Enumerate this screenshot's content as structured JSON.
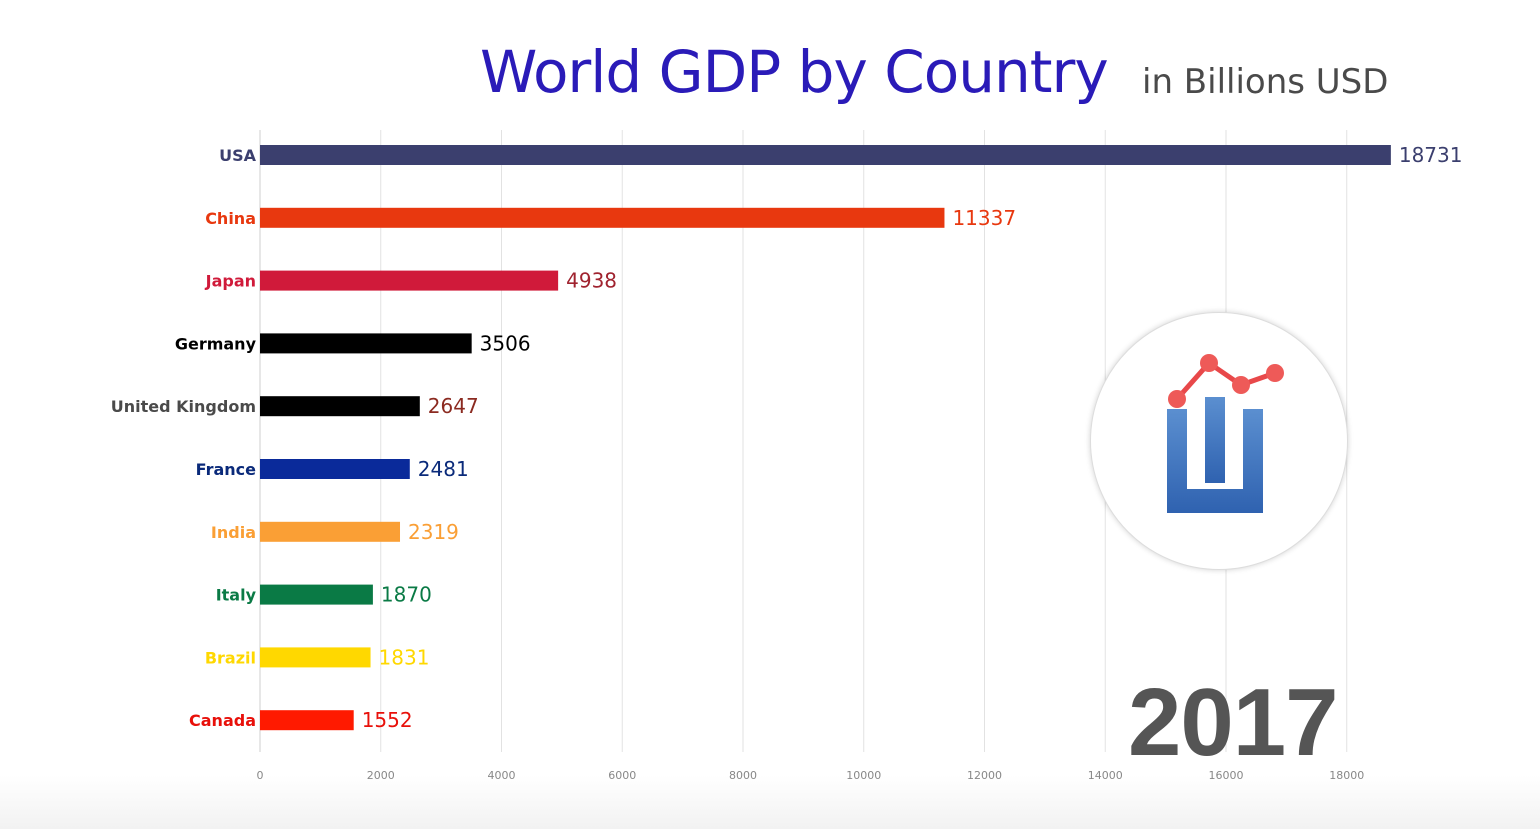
{
  "header": {
    "title": "World GDP by Country",
    "subtitle": "in Billions USD"
  },
  "year": "2017",
  "logo": {
    "icon": "chart-logo-icon"
  },
  "chart_data": {
    "type": "bar",
    "orientation": "horizontal",
    "title": "World GDP by Country",
    "subtitle": "in Billions USD",
    "year": "2017",
    "xlabel": "",
    "ylabel": "",
    "xlim": [
      0,
      18700
    ],
    "grid": true,
    "categories": [
      "USA",
      "China",
      "Japan",
      "Germany",
      "United Kingdom",
      "France",
      "India",
      "Italy",
      "Brazil",
      "Canada"
    ],
    "values": [
      18731,
      11337,
      4938,
      3506,
      2647,
      2481,
      2319,
      1870,
      1831,
      1552
    ],
    "bar_colors": [
      "#3b3f6e",
      "#e8380f",
      "#d01a3a",
      "#000000",
      "#000000",
      "#0a2a9a",
      "#fa9f35",
      "#0a7a45",
      "#ffd800",
      "#ff1a00"
    ],
    "category_label_colors": [
      "#3b3f6e",
      "#e8380f",
      "#d01a3a",
      "#000000",
      "#4a4a4a",
      "#0a2a7a",
      "#fa9f35",
      "#0a7a45",
      "#ffd800",
      "#e8100a"
    ],
    "value_label_colors": [
      "#3b3f6e",
      "#e8380f",
      "#a0232f",
      "#000000",
      "#8b2a20",
      "#0a2a7a",
      "#fa9f35",
      "#0a7a45",
      "#ffd800",
      "#e8100a"
    ],
    "x_ticks": [
      0,
      2000,
      4000,
      6000,
      8000,
      10000,
      12000,
      14000,
      16000,
      18000
    ],
    "x_tick_labels": [
      "0",
      "2000",
      "4000",
      "6000",
      "8000",
      "10000",
      "12000",
      "14000",
      "16000",
      "18000"
    ]
  }
}
